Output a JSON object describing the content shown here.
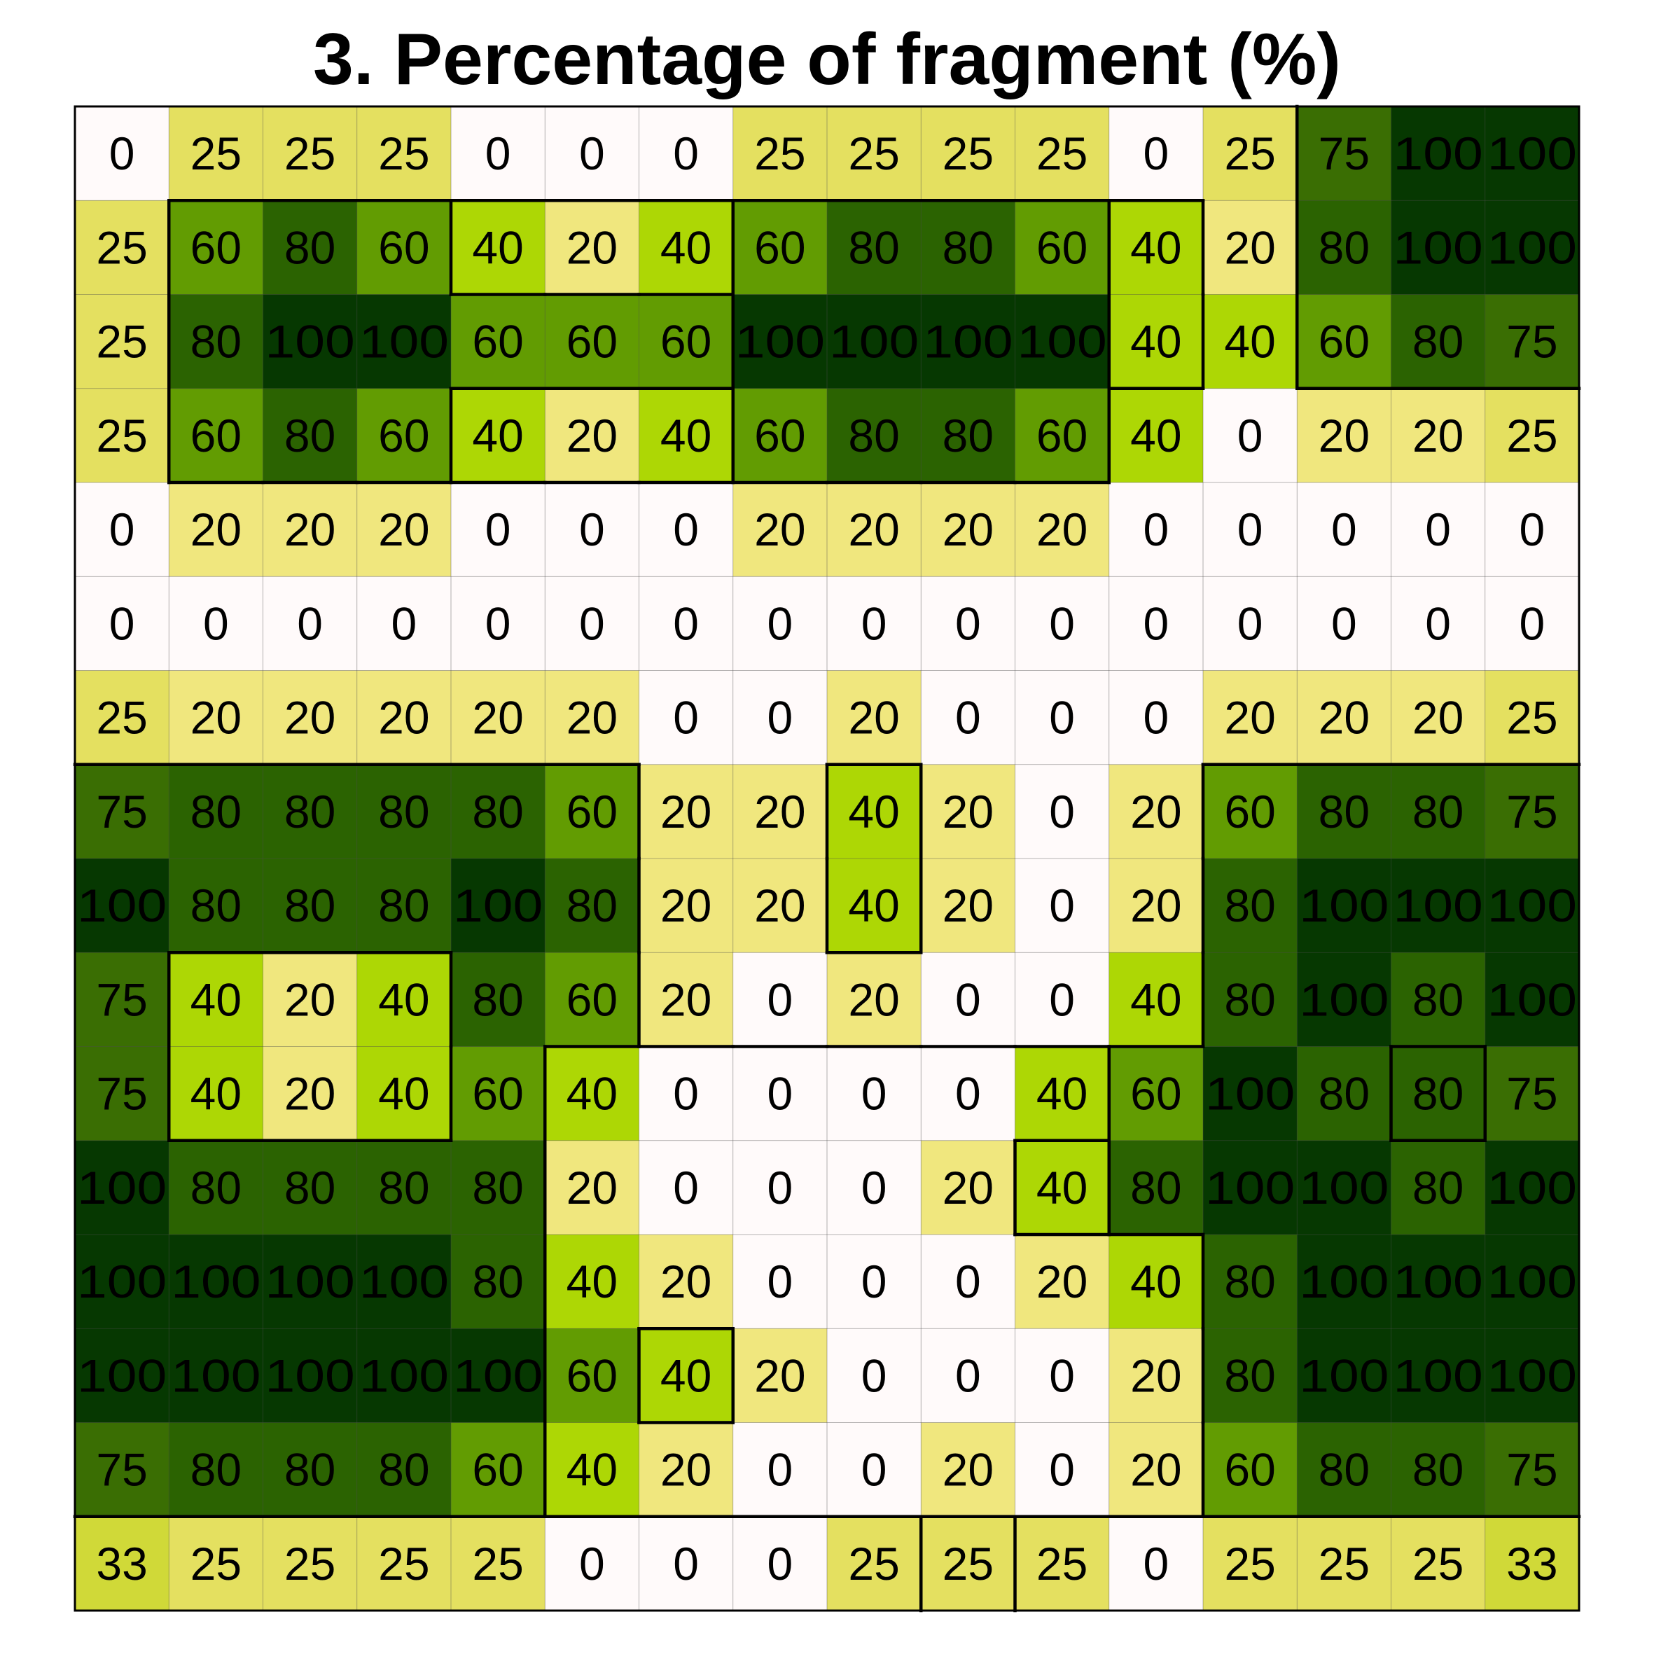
{
  "chart_data": {
    "type": "heatmap",
    "title": "3. Percentage of fragment (%)",
    "xlabel": "",
    "ylabel": "",
    "rows": 16,
    "cols": 16,
    "values": [
      [
        0,
        25,
        25,
        25,
        0,
        0,
        0,
        25,
        25,
        25,
        25,
        0,
        25,
        75,
        100,
        100
      ],
      [
        25,
        60,
        80,
        60,
        40,
        20,
        40,
        60,
        80,
        80,
        60,
        40,
        20,
        80,
        100,
        100
      ],
      [
        25,
        80,
        100,
        100,
        60,
        60,
        60,
        100,
        100,
        100,
        100,
        40,
        40,
        60,
        80,
        75
      ],
      [
        25,
        60,
        80,
        60,
        40,
        20,
        40,
        60,
        80,
        80,
        60,
        40,
        0,
        20,
        20,
        25
      ],
      [
        0,
        20,
        20,
        20,
        0,
        0,
        0,
        20,
        20,
        20,
        20,
        0,
        0,
        0,
        0,
        0
      ],
      [
        0,
        0,
        0,
        0,
        0,
        0,
        0,
        0,
        0,
        0,
        0,
        0,
        0,
        0,
        0,
        0
      ],
      [
        25,
        20,
        20,
        20,
        20,
        20,
        0,
        0,
        20,
        0,
        0,
        0,
        20,
        20,
        20,
        25
      ],
      [
        75,
        80,
        80,
        80,
        80,
        60,
        20,
        20,
        40,
        20,
        0,
        20,
        60,
        80,
        80,
        75
      ],
      [
        100,
        80,
        80,
        80,
        100,
        80,
        20,
        20,
        40,
        20,
        0,
        20,
        80,
        100,
        100,
        100
      ],
      [
        75,
        40,
        20,
        40,
        80,
        60,
        20,
        0,
        20,
        0,
        0,
        40,
        80,
        100,
        80,
        100
      ],
      [
        75,
        40,
        20,
        40,
        60,
        40,
        0,
        0,
        0,
        0,
        40,
        60,
        100,
        80,
        80,
        75
      ],
      [
        100,
        80,
        80,
        80,
        80,
        20,
        0,
        0,
        0,
        20,
        40,
        80,
        100,
        100,
        80,
        100
      ],
      [
        100,
        100,
        100,
        100,
        80,
        40,
        20,
        0,
        0,
        0,
        20,
        40,
        80,
        100,
        100,
        100
      ],
      [
        100,
        100,
        100,
        100,
        100,
        60,
        40,
        20,
        0,
        0,
        0,
        20,
        80,
        100,
        100,
        100
      ],
      [
        75,
        80,
        80,
        80,
        60,
        40,
        20,
        0,
        0,
        20,
        0,
        20,
        60,
        80,
        80,
        75
      ],
      [
        33,
        25,
        25,
        25,
        25,
        0,
        0,
        0,
        25,
        25,
        25,
        0,
        25,
        25,
        25,
        33
      ]
    ],
    "regions": [
      [
        0,
        0,
        0,
        0,
        0,
        0,
        0,
        0,
        0,
        0,
        0,
        0,
        0,
        1,
        1,
        1
      ],
      [
        0,
        2,
        2,
        2,
        3,
        3,
        3,
        4,
        4,
        4,
        4,
        5,
        0,
        1,
        1,
        1
      ],
      [
        0,
        2,
        2,
        2,
        2,
        2,
        2,
        4,
        4,
        4,
        4,
        5,
        0,
        1,
        1,
        1
      ],
      [
        0,
        2,
        2,
        2,
        6,
        6,
        6,
        4,
        4,
        4,
        4,
        0,
        0,
        0,
        0,
        0
      ],
      [
        0,
        0,
        0,
        0,
        0,
        0,
        0,
        0,
        0,
        0,
        0,
        0,
        0,
        0,
        0,
        0
      ],
      [
        0,
        0,
        0,
        0,
        0,
        0,
        0,
        0,
        0,
        0,
        0,
        0,
        0,
        0,
        0,
        0
      ],
      [
        0,
        0,
        0,
        0,
        0,
        0,
        0,
        0,
        0,
        0,
        0,
        0,
        0,
        0,
        0,
        0
      ],
      [
        7,
        7,
        7,
        7,
        7,
        7,
        0,
        0,
        8,
        0,
        0,
        0,
        9,
        9,
        9,
        9
      ],
      [
        7,
        7,
        7,
        7,
        7,
        7,
        0,
        0,
        8,
        0,
        0,
        0,
        9,
        9,
        9,
        9
      ],
      [
        7,
        10,
        10,
        10,
        7,
        7,
        0,
        0,
        0,
        0,
        0,
        0,
        9,
        9,
        9,
        9
      ],
      [
        7,
        10,
        10,
        10,
        7,
        11,
        11,
        11,
        11,
        11,
        11,
        9,
        9,
        9,
        12,
        9
      ],
      [
        7,
        7,
        7,
        7,
        7,
        11,
        11,
        11,
        11,
        11,
        13,
        9,
        9,
        9,
        9,
        9
      ],
      [
        7,
        7,
        7,
        7,
        7,
        11,
        11,
        11,
        11,
        11,
        11,
        11,
        9,
        9,
        9,
        9
      ],
      [
        7,
        7,
        7,
        7,
        7,
        11,
        14,
        11,
        11,
        11,
        11,
        11,
        9,
        9,
        9,
        9
      ],
      [
        7,
        7,
        7,
        7,
        7,
        11,
        11,
        11,
        11,
        11,
        11,
        11,
        9,
        9,
        9,
        9
      ],
      [
        0,
        0,
        0,
        0,
        0,
        0,
        0,
        0,
        0,
        15,
        0,
        0,
        0,
        0,
        0,
        0
      ]
    ],
    "color_scale": {
      "0": "#fffafa",
      "20": "#f0e77e",
      "25": "#e4e060",
      "33": "#d0d938",
      "40": "#add705",
      "60": "#629c02",
      "75": "#3a6e03",
      "80": "#2b6301",
      "100": "#063801"
    },
    "grid": true,
    "legend": "none"
  }
}
